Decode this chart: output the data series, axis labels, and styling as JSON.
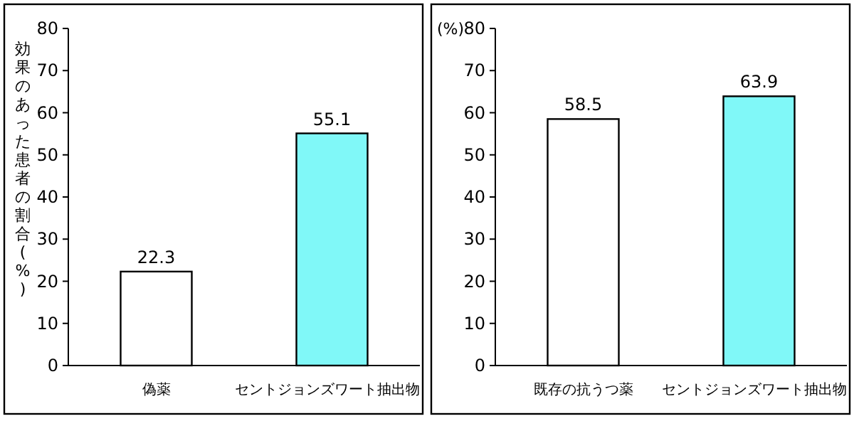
{
  "chart_data": [
    {
      "type": "bar",
      "ylabel": "効果のあった患者の割合(%)",
      "categories": [
        "偽薬",
        "セントジョンズワート抽出物"
      ],
      "values": [
        22.3,
        55.1
      ],
      "colors": [
        "#ffffff",
        "#80f8f8"
      ],
      "ylim": [
        0,
        80
      ],
      "yticks": [
        0,
        10,
        20,
        30,
        40,
        50,
        60,
        70,
        80
      ],
      "data_labels": true
    },
    {
      "type": "bar",
      "ylabel": "(%)",
      "categories": [
        "既存の抗うつ薬",
        "セントジョンズワート抽出物"
      ],
      "values": [
        58.5,
        63.9
      ],
      "colors": [
        "#ffffff",
        "#80f8f8"
      ],
      "ylim": [
        0,
        80
      ],
      "yticks": [
        0,
        10,
        20,
        30,
        40,
        50,
        60,
        70,
        80
      ],
      "data_labels": true
    }
  ]
}
